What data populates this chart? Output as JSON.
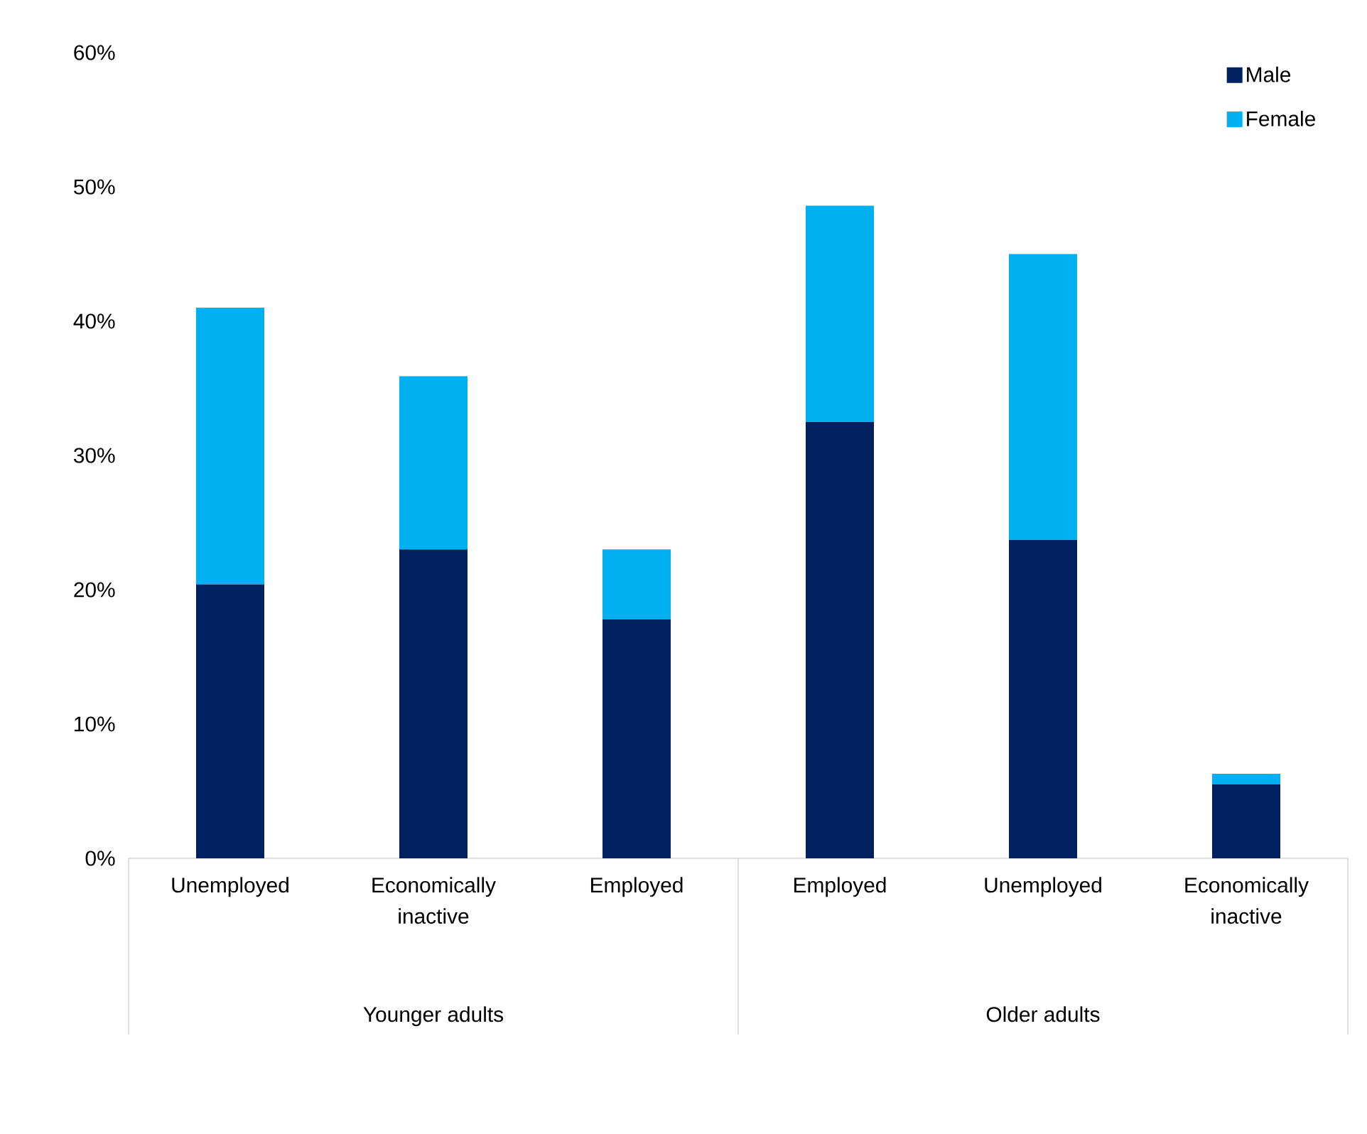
{
  "chart_data": {
    "type": "bar",
    "stacked": true,
    "categories": [
      "Unemployed",
      "Economically inactive",
      "Employed",
      "Employed",
      "Unemployed",
      "Economically inactive"
    ],
    "series": [
      {
        "name": "Male",
        "color": "#002060",
        "values": [
          20.4,
          23.0,
          17.8,
          32.5,
          23.7,
          5.5
        ]
      },
      {
        "name": "Female",
        "color": "#00b0f0",
        "values": [
          20.6,
          12.9,
          5.2,
          16.1,
          21.3,
          0.8
        ]
      }
    ],
    "ylim": [
      0,
      60
    ],
    "yticks": [
      {
        "value": 0,
        "label": "0%"
      },
      {
        "value": 10,
        "label": "10%"
      },
      {
        "value": 20,
        "label": "20%"
      },
      {
        "value": 30,
        "label": "30%"
      },
      {
        "value": 40,
        "label": "40%"
      },
      {
        "value": 50,
        "label": "50%"
      },
      {
        "value": 60,
        "label": "60%"
      }
    ],
    "annotations": [
      "Younger adults",
      "Older adults"
    ],
    "legend": "top right"
  }
}
